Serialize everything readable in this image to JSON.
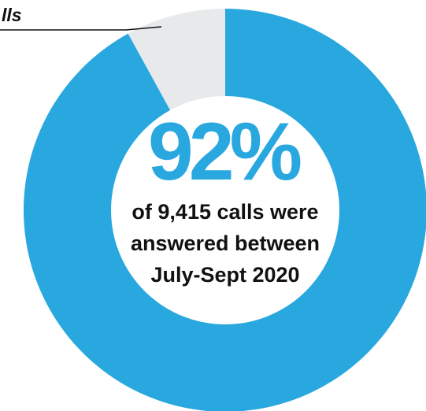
{
  "chart_data": {
    "type": "pie",
    "donut": true,
    "categories": [
      null,
      "lls"
    ],
    "values": [
      92,
      8
    ],
    "colors": [
      "#29a8e0",
      "#e8e9eb"
    ],
    "value_labels": [
      "92%",
      null
    ],
    "annotation_lines": [
      "of 9,415 calls were",
      "answered between",
      "July-Sept 2020"
    ]
  }
}
